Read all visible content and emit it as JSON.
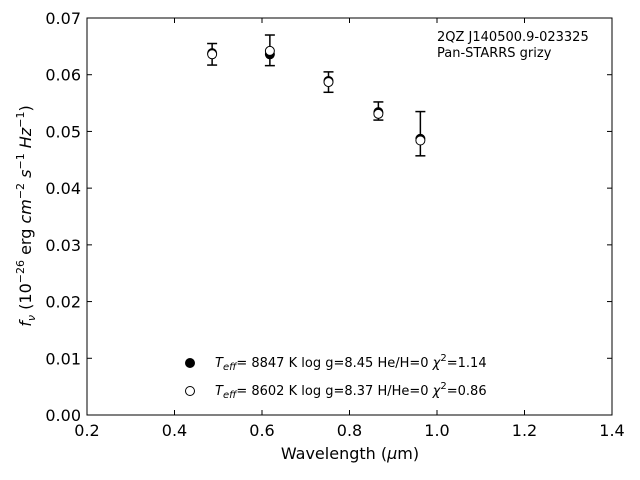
{
  "chart_data": {
    "type": "scatter",
    "title": "",
    "xlabel": "Wavelength (μm)",
    "ylabel": "f_ν (10^-26 erg cm^-2 s^-1 Hz^-1)",
    "xlim": [
      0.2,
      1.4
    ],
    "ylim": [
      0.0,
      0.07
    ],
    "xticks": [
      0.2,
      0.4,
      0.6,
      0.8,
      1.0,
      1.2,
      1.4
    ],
    "xtick_labels": [
      "0.2",
      "0.4",
      "0.6",
      "0.8",
      "1.0",
      "1.2",
      "1.4"
    ],
    "yticks": [
      0.0,
      0.01,
      0.02,
      0.03,
      0.04,
      0.05,
      0.06,
      0.07
    ],
    "ytick_labels": [
      "0.00",
      "0.01",
      "0.02",
      "0.03",
      "0.04",
      "0.05",
      "0.06",
      "0.07"
    ],
    "grid": false,
    "annotation_lines": [
      "2QZ J140500.9-023325",
      "Pan-STARRS grizy"
    ],
    "observed": {
      "x": [
        0.486,
        0.618,
        0.752,
        0.866,
        0.962
      ],
      "y": [
        0.0636,
        0.0643,
        0.0587,
        0.0536,
        0.0496
      ],
      "yerr": [
        0.0019,
        0.0027,
        0.0018,
        0.0016,
        0.0039
      ]
    },
    "series": [
      {
        "marker": "filled-circle",
        "x": [
          0.486,
          0.618,
          0.752,
          0.866,
          0.962
        ],
        "y": [
          0.0638,
          0.0636,
          0.0589,
          0.0534,
          0.0487
        ],
        "legend": {
          "teff": "8847 K",
          "logg": "log g=8.45",
          "comp": "He/H=0",
          "chi2": "=1.14"
        }
      },
      {
        "marker": "open-circle",
        "x": [
          0.486,
          0.618,
          0.752,
          0.866,
          0.962
        ],
        "y": [
          0.0636,
          0.0642,
          0.0587,
          0.0531,
          0.0484
        ],
        "legend": {
          "teff": "8602 K",
          "logg": "log g=8.37",
          "comp": "H/He=0",
          "chi2": "=0.86"
        }
      }
    ],
    "legend_position": "bottom-center",
    "colors": {
      "markers": "#000000",
      "axes": "#000000",
      "background": "#ffffff"
    }
  }
}
